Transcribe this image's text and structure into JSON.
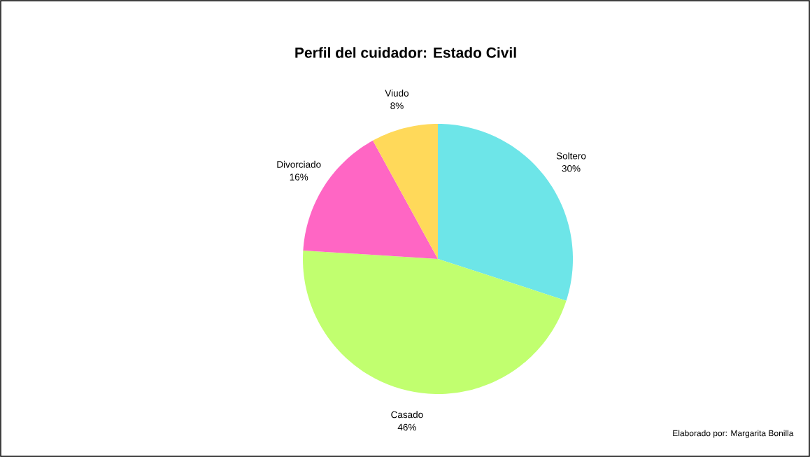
{
  "chart_data": {
    "type": "pie",
    "title": "Perfil del cuidador: Estado Civil",
    "categories": [
      "Soltero",
      "Casado",
      "Divorciado",
      "Viudo"
    ],
    "values": [
      30,
      46,
      16,
      8
    ],
    "value_labels": [
      "30%",
      "46%",
      "16%",
      "8%"
    ],
    "colors": [
      "#6de5e8",
      "#c1ff6f",
      "#ff66c4",
      "#ffd95a"
    ],
    "annotations": [
      "Elaborado por: Margarita Bonilla"
    ]
  }
}
